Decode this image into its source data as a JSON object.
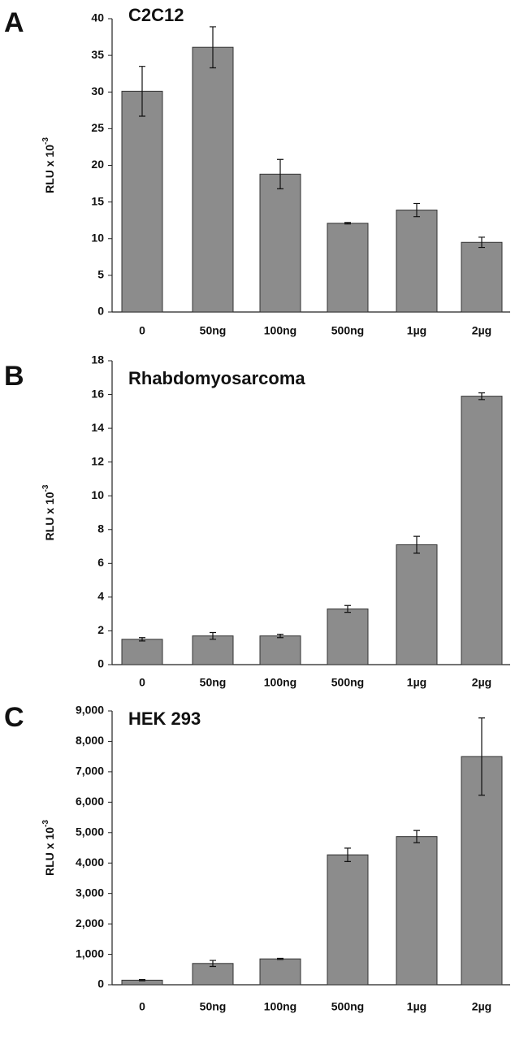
{
  "chart_data": [
    {
      "type": "bar",
      "label": "A",
      "title": "C2C12",
      "ylabel": "RLU x 10",
      "ylabel_superscript": "-3",
      "categories": [
        "0",
        "50ng",
        "100ng",
        "500ng",
        "1µg",
        "2µg"
      ],
      "values": [
        30.1,
        36.1,
        18.8,
        12.1,
        13.9,
        9.5
      ],
      "errors": [
        3.4,
        2.8,
        2.0,
        0.1,
        0.9,
        0.7
      ],
      "color": "#8c8c8c",
      "ylim": [
        0,
        40
      ],
      "yticks": [
        0,
        5,
        10,
        15,
        20,
        25,
        30,
        35,
        40
      ]
    },
    {
      "type": "bar",
      "label": "B",
      "title": "Rhabdomyosarcoma",
      "ylabel": "RLU x 10",
      "ylabel_superscript": "-3",
      "categories": [
        "0",
        "50ng",
        "100ng",
        "500ng",
        "1µg",
        "2µg"
      ],
      "values": [
        1.5,
        1.7,
        1.7,
        3.3,
        7.1,
        15.9
      ],
      "errors": [
        0.1,
        0.2,
        0.1,
        0.2,
        0.5,
        0.2
      ],
      "color": "#8c8c8c",
      "ylim": [
        0,
        18
      ],
      "yticks": [
        0,
        2,
        4,
        6,
        8,
        10,
        12,
        14,
        16,
        18
      ]
    },
    {
      "type": "bar",
      "label": "C",
      "title": "HEK 293",
      "ylabel": "RLU x 10",
      "ylabel_superscript": "-3",
      "categories": [
        "0",
        "50ng",
        "100ng",
        "500ng",
        "1µg",
        "2µg"
      ],
      "values": [
        150,
        700,
        850,
        4270,
        4870,
        7500
      ],
      "errors": [
        20,
        100,
        20,
        220,
        200,
        1270
      ],
      "color": "#8c8c8c",
      "ylim": [
        0,
        9000
      ],
      "yticks": [
        0,
        {
          "value": 1000,
          "label": "1,000"
        },
        {
          "value": 2000,
          "label": "2,000"
        },
        {
          "value": 3000,
          "label": "3,000"
        },
        {
          "value": 4000,
          "label": "4,000"
        },
        {
          "value": 5000,
          "label": "5,000"
        },
        {
          "value": 6000,
          "label": "6,000"
        },
        {
          "value": 7000,
          "label": "7,000"
        },
        {
          "value": 8000,
          "label": "8,000"
        },
        {
          "value": 9000,
          "label": "9,000"
        }
      ]
    }
  ]
}
